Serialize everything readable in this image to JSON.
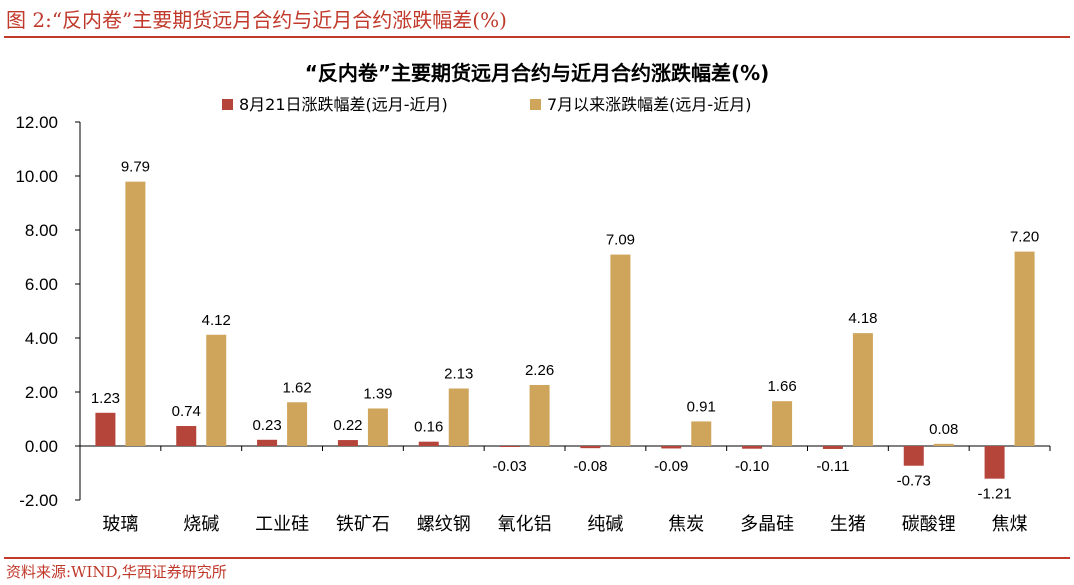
{
  "caption": "图 2:“反内卷”主要期货远月合约与近月合约涨跌幅差(%)",
  "source": "资料来源:WIND,华西证券研究所",
  "colors": {
    "accent": "#c0392b",
    "series1": "#b5443a",
    "series2": "#cfa55c"
  },
  "chart_data": {
    "type": "bar",
    "title": "“反内卷”主要期货远月合约与近月合约涨跌幅差(%)",
    "categories": [
      "玻璃",
      "烧碱",
      "工业硅",
      "铁矿石",
      "螺纹钢",
      "氧化铝",
      "纯碱",
      "焦炭",
      "多晶硅",
      "生猪",
      "碳酸锂",
      "焦煤"
    ],
    "series": [
      {
        "name": "8月21日涨跌幅差(远月-近月)",
        "values": [
          1.23,
          0.74,
          0.23,
          0.22,
          0.16,
          -0.03,
          -0.08,
          -0.09,
          -0.1,
          -0.11,
          -0.73,
          -1.21
        ],
        "labels": [
          "1.23",
          "0.74",
          "0.23",
          "0.22",
          "0.16",
          "-0.03",
          "-0.08",
          "-0.09",
          "-0.10",
          "-0.11",
          "-0.73",
          "-1.21"
        ]
      },
      {
        "name": "7月以来涨跌幅差(远月-近月)",
        "values": [
          9.79,
          4.12,
          1.62,
          1.39,
          2.13,
          2.26,
          7.09,
          0.91,
          1.66,
          4.18,
          0.08,
          7.2
        ],
        "labels": [
          "9.79",
          "4.12",
          "1.62",
          "1.39",
          "2.13",
          "2.26",
          "7.09",
          "0.91",
          "1.66",
          "4.18",
          "0.08",
          "7.20"
        ]
      }
    ],
    "ylim": [
      -2,
      12
    ],
    "yticks": [
      "12.00",
      "10.00",
      "8.00",
      "6.00",
      "4.00",
      "2.00",
      "0.00",
      "-2.00"
    ],
    "ytick_values": [
      12,
      10,
      8,
      6,
      4,
      2,
      0,
      -2
    ],
    "legend_position": "top",
    "grid": false
  }
}
